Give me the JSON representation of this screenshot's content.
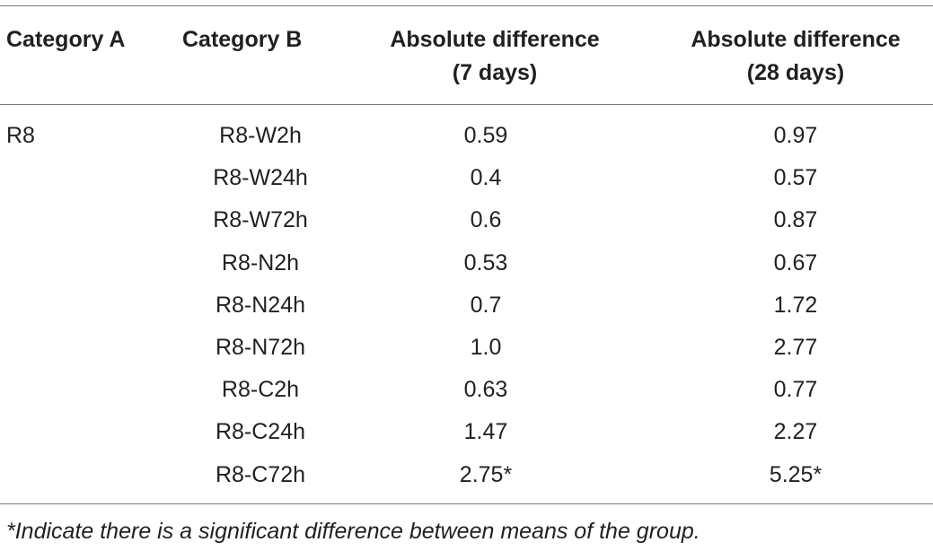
{
  "table": {
    "headers": {
      "category_a": "Category A",
      "category_b": "Category B",
      "abs_diff_7": [
        "Absolute difference",
        "(7 days)"
      ],
      "abs_diff_28": [
        "Absolute difference",
        "(28 days)"
      ]
    },
    "rows": [
      {
        "category_a": "R8",
        "category_b": "R8-W2h",
        "d7": "0.59",
        "d28": "0.97"
      },
      {
        "category_a": "",
        "category_b": "R8-W24h",
        "d7": "0.4",
        "d28": "0.57"
      },
      {
        "category_a": "",
        "category_b": "R8-W72h",
        "d7": "0.6",
        "d28": "0.87"
      },
      {
        "category_a": "",
        "category_b": "R8-N2h",
        "d7": "0.53",
        "d28": "0.67"
      },
      {
        "category_a": "",
        "category_b": "R8-N24h",
        "d7": "0.7",
        "d28": "1.72"
      },
      {
        "category_a": "",
        "category_b": "R8-N72h",
        "d7": "1.0",
        "d28": "2.77"
      },
      {
        "category_a": "",
        "category_b": "R8-C2h",
        "d7": "0.63",
        "d28": "0.77"
      },
      {
        "category_a": "",
        "category_b": "R8-C24h",
        "d7": "1.47",
        "d28": "2.27"
      },
      {
        "category_a": "",
        "category_b": "R8-C72h",
        "d7": "2.75*",
        "d28": "5.25*"
      }
    ],
    "footnote": "*Indicate there is a significant difference between means of the group."
  }
}
